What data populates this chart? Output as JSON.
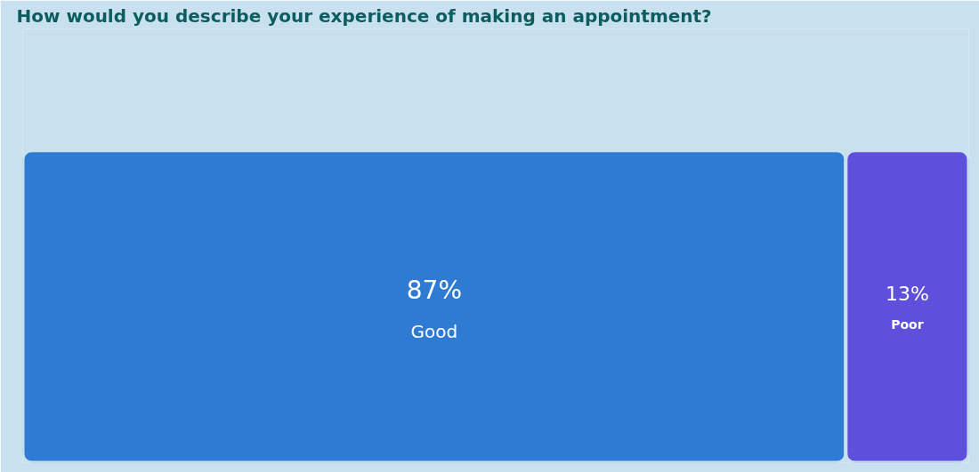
{
  "chart_data": {
    "type": "bar",
    "title": "How would you describe your experience of making an appointment?",
    "orientation": "horizontal",
    "stacked": true,
    "categories": [
      null
    ],
    "series": [
      {
        "name": "Good",
        "color": "#2f7bd3",
        "values": [
          87
        ],
        "value_labels": [
          "87%"
        ]
      },
      {
        "name": "Poor",
        "color": "#5f50dc",
        "values": [
          13
        ],
        "value_labels": [
          "13%"
        ]
      }
    ],
    "grid": false,
    "tick_labels": false
  }
}
